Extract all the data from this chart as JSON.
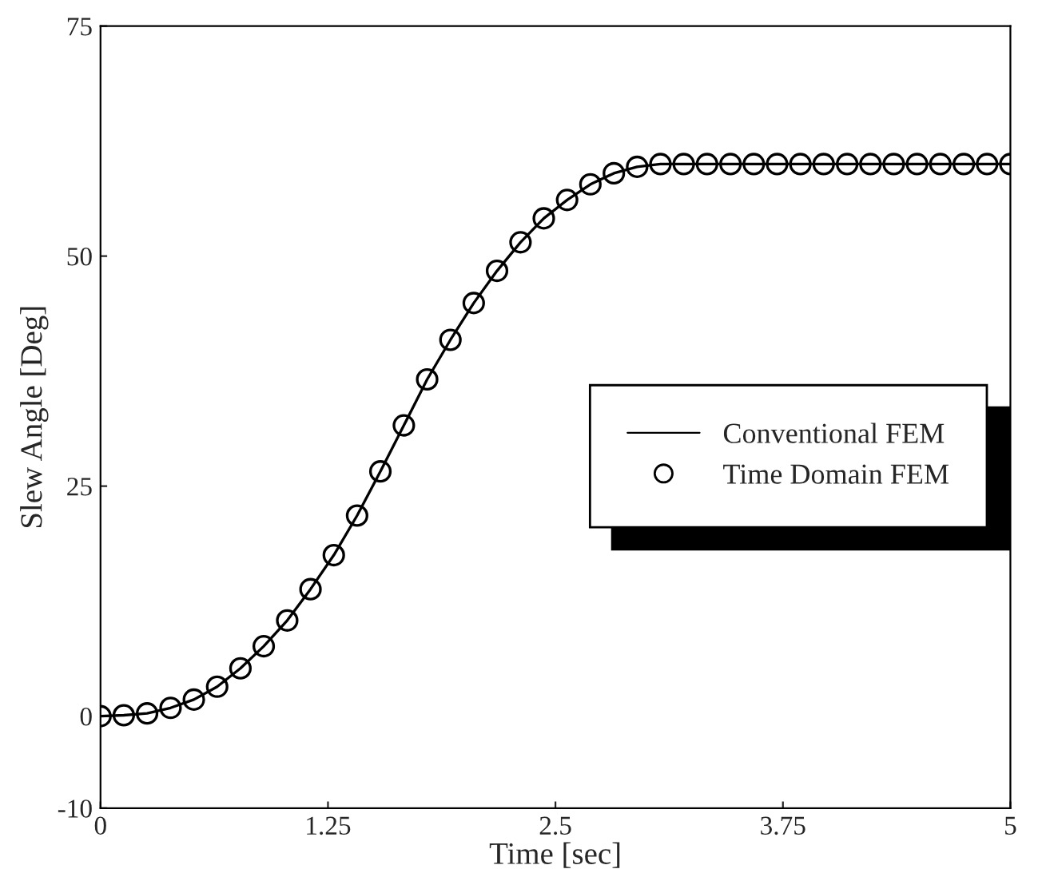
{
  "chart_data": {
    "type": "line",
    "xlabel": "Time [sec]",
    "ylabel": "Slew Angle [Deg]",
    "x": [
      0,
      0.128,
      0.256,
      0.385,
      0.513,
      0.641,
      0.769,
      0.897,
      1.026,
      1.154,
      1.282,
      1.41,
      1.538,
      1.667,
      1.795,
      1.923,
      2.051,
      2.179,
      2.308,
      2.436,
      2.564,
      2.692,
      2.821,
      2.949,
      3.077,
      3.205,
      3.333,
      3.462,
      3.59,
      3.718,
      3.846,
      3.974,
      4.103,
      4.231,
      4.359,
      4.487,
      4.615,
      4.744,
      4.872,
      5
    ],
    "series": [
      {
        "name": "Conventional FEM",
        "color": "#000000",
        "marker": "none",
        "line_style": "solid",
        "values": [
          0,
          0.1,
          0.3,
          0.9,
          1.8,
          3.2,
          5.2,
          7.6,
          10.4,
          13.8,
          17.5,
          21.8,
          26.6,
          31.6,
          36.6,
          40.9,
          44.9,
          48.4,
          51.5,
          54.1,
          56.1,
          57.8,
          59.0,
          59.7,
          60.0,
          60,
          60,
          60,
          60,
          60,
          60,
          60,
          60,
          60,
          60,
          60,
          60,
          60,
          60,
          60
        ]
      },
      {
        "name": "Time Domain FEM",
        "color": "#000000",
        "type": "scatter",
        "marker": "circle",
        "values": [
          0,
          0.1,
          0.3,
          0.9,
          1.8,
          3.2,
          5.2,
          7.6,
          10.4,
          13.8,
          17.5,
          21.8,
          26.6,
          31.6,
          36.6,
          40.9,
          44.9,
          48.4,
          51.5,
          54.1,
          56.1,
          57.8,
          59.0,
          59.7,
          60.0,
          60,
          60,
          60,
          60,
          60,
          60,
          60,
          60,
          60,
          60,
          60,
          60,
          60,
          60,
          60
        ]
      }
    ],
    "xlim": [
      0,
      5
    ],
    "xticks": [
      0,
      1.25,
      2.5,
      3.75,
      5
    ],
    "ylim": [
      -10,
      75
    ],
    "yticks": [
      -10,
      0,
      25,
      50,
      75
    ],
    "grid": false,
    "legend": "right"
  }
}
